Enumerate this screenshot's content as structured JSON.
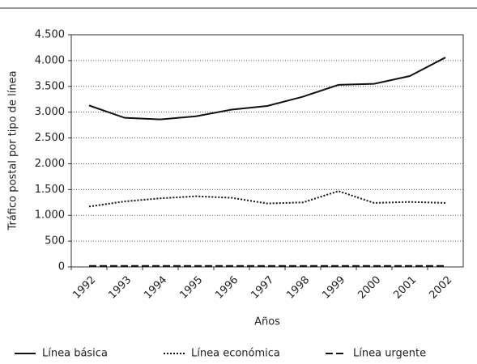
{
  "chart_data": {
    "type": "line",
    "x_label": "Años",
    "y_label": "Tráfico postal por tipo de línea",
    "categories": [
      "1992",
      "1993",
      "1994",
      "1995",
      "1996",
      "1997",
      "1998",
      "1999",
      "2000",
      "2001",
      "2002"
    ],
    "series": [
      {
        "name": "Línea básica",
        "color": "#111111",
        "dash": "solid",
        "values": [
          3130,
          2890,
          2860,
          2920,
          3050,
          3120,
          3300,
          3530,
          3550,
          3700,
          4060
        ]
      },
      {
        "name": "Línea económica",
        "color": "#111111",
        "dash": "dotted",
        "values": [
          1170,
          1270,
          1330,
          1370,
          1340,
          1230,
          1250,
          1470,
          1240,
          1260,
          1240
        ]
      },
      {
        "name": "Línea urgente",
        "color": "#111111",
        "dash": "dashed",
        "values": [
          20,
          20,
          20,
          20,
          20,
          20,
          20,
          20,
          20,
          20,
          20
        ]
      }
    ],
    "ylim": [
      0,
      4500
    ],
    "yticks": [
      0,
      500,
      {
        "value": 1000,
        "label": "1.000"
      },
      {
        "value": 1500,
        "label": "1.500"
      },
      {
        "value": 2000,
        "label": "2.000"
      },
      {
        "value": 2500,
        "label": "2.500"
      },
      {
        "value": 3000,
        "label": "3.000"
      },
      {
        "value": 3500,
        "label": "3.500"
      },
      {
        "value": 4000,
        "label": "4.000"
      },
      {
        "value": 4500,
        "label": "4.500"
      }
    ],
    "grid": true
  }
}
